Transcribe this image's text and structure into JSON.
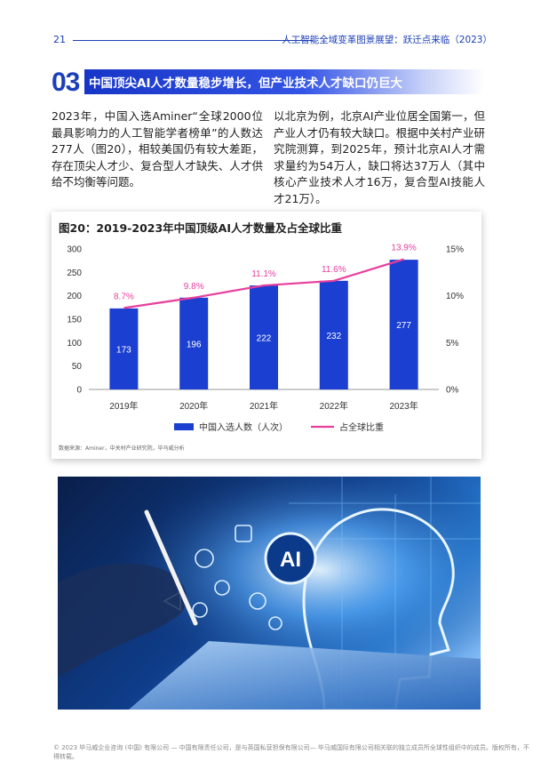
{
  "header": {
    "page_number": "21",
    "title": "人工智能全域变革图景展望：跃迁点来临（2023）"
  },
  "section": {
    "number": "03",
    "title": "中国顶尖AI人才数量稳步增长，但产业技术人才缺口仍巨大"
  },
  "paragraphs": {
    "left": "2023年，中国入选Aminer“全球2000位最具影响力的人工智能学者榜单”的人数达277人（图20），相较美国仍有较大差距，存在顶尖人才少、复合型人才缺失、人才供给不均衡等问题。",
    "right": "以北京为例，北京AI产业位居全国第一，但产业人才仍有较大缺口。根据中关村产业研究院测算，到2025年，预计北京AI人才需求量约为54万人，缺口将达37万人（其中核心产业技术人才16万，复合型AI技能人才21万）。"
  },
  "chart_data": {
    "type": "bar",
    "title": "图20：2019-2023年中国顶级AI人才数量及占全球比重",
    "categories": [
      "2019年",
      "2020年",
      "2021年",
      "2022年",
      "2023年"
    ],
    "series": [
      {
        "name": "中国入选人数（人次）",
        "type": "bar",
        "values": [
          173,
          196,
          222,
          232,
          277
        ],
        "axis": "left",
        "color": "#1b3fd0"
      },
      {
        "name": "占全球比重",
        "type": "line",
        "values": [
          8.7,
          9.8,
          11.1,
          11.6,
          13.9
        ],
        "value_labels": [
          "8.7%",
          "9.8%",
          "11.1%",
          "11.6%",
          "13.9%"
        ],
        "axis": "right",
        "color": "#e83e9c"
      }
    ],
    "ylim": [
      0,
      300
    ],
    "yticks": [
      "0",
      "50",
      "100",
      "150",
      "200",
      "250",
      "300"
    ],
    "y2lim": [
      0,
      15
    ],
    "y2ticks": [
      "0%",
      "5%",
      "10%",
      "15%"
    ],
    "legend": "bottom",
    "source": "数据来源：Aminer，中关村产业研究院，毕马威分析"
  },
  "image": {
    "alt_icon": "ai-head-tablet-illustration"
  },
  "footer": "© 2023 毕马威企业咨询 (中国) 有限公司 — 中国有限责任公司，是与英国私营担保有限公司— 毕马威国际有限公司相关联的独立成员所全球性组织中的成员。版权所有，不得转载。"
}
